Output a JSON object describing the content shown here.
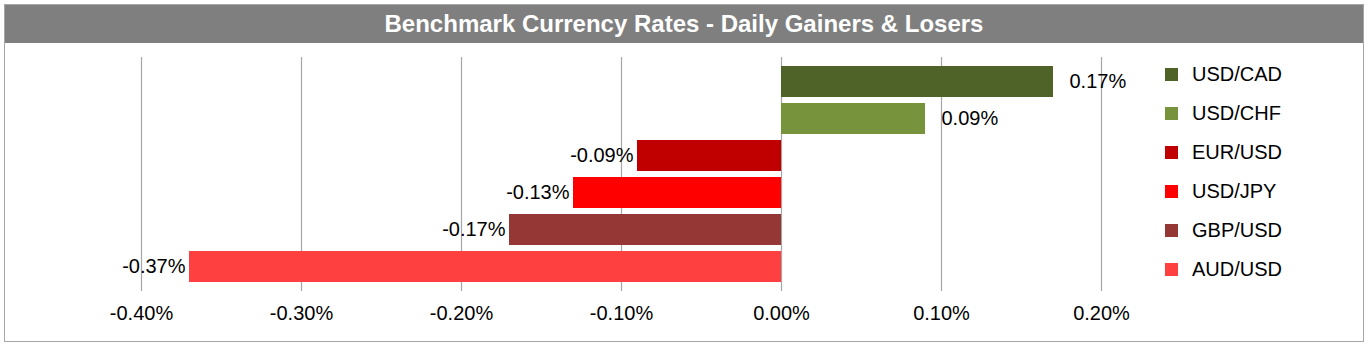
{
  "chart_data": {
    "type": "bar",
    "orientation": "horizontal",
    "title": "Benchmark Currency Rates - Daily Gainers & Losers",
    "categories": [
      "USD/CAD",
      "USD/CHF",
      "EUR/USD",
      "USD/JPY",
      "GBP/USD",
      "AUD/USD"
    ],
    "values": [
      0.17,
      0.09,
      -0.09,
      -0.13,
      -0.17,
      -0.37
    ],
    "value_labels": [
      "0.17%",
      "0.09%",
      "-0.09%",
      "-0.13%",
      "-0.17%",
      "-0.37%"
    ],
    "colors": [
      "#4f6228",
      "#77933c",
      "#c00000",
      "#ff0000",
      "#953735",
      "#ff4040"
    ],
    "xlim": [
      -0.4,
      0.2
    ],
    "xticks": [
      {
        "value": -0.4,
        "label": "-0.40%"
      },
      {
        "value": -0.3,
        "label": "-0.30%"
      },
      {
        "value": -0.2,
        "label": "-0.20%"
      },
      {
        "value": -0.1,
        "label": "-0.10%"
      },
      {
        "value": 0,
        "label": "0.00%"
      },
      {
        "value": 0.1,
        "label": "0.10%"
      },
      {
        "value": 0.2,
        "label": "0.20%"
      }
    ],
    "grid": true,
    "data_labels": true,
    "legend": "right",
    "tick_labels": "x"
  }
}
